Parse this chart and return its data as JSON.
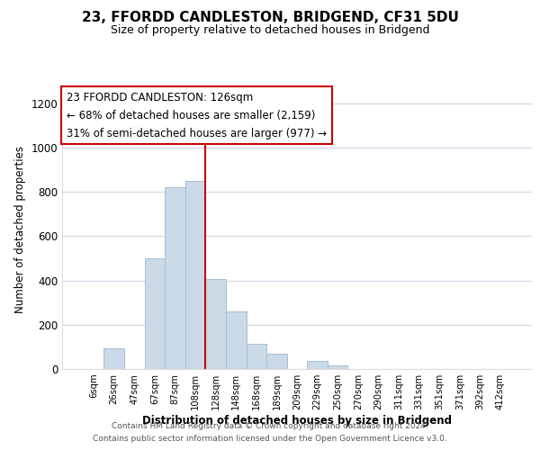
{
  "title": "23, FFORDD CANDLESTON, BRIDGEND, CF31 5DU",
  "subtitle": "Size of property relative to detached houses in Bridgend",
  "xlabel": "Distribution of detached houses by size in Bridgend",
  "ylabel": "Number of detached properties",
  "footer_line1": "Contains HM Land Registry data © Crown copyright and database right 2024.",
  "footer_line2": "Contains public sector information licensed under the Open Government Licence v3.0.",
  "bar_color": "#ccd9e8",
  "bar_edge_color": "#a8bfd0",
  "annotation_box_edge": "#cc0000",
  "vline_color": "#cc0000",
  "bin_labels": [
    "6sqm",
    "26sqm",
    "47sqm",
    "67sqm",
    "87sqm",
    "108sqm",
    "128sqm",
    "148sqm",
    "168sqm",
    "189sqm",
    "209sqm",
    "229sqm",
    "250sqm",
    "270sqm",
    "290sqm",
    "311sqm",
    "331sqm",
    "351sqm",
    "371sqm",
    "392sqm",
    "412sqm"
  ],
  "bar_heights": [
    0,
    95,
    0,
    500,
    820,
    850,
    405,
    260,
    115,
    70,
    0,
    35,
    15,
    0,
    0,
    0,
    0,
    0,
    0,
    0,
    0
  ],
  "vline_x_idx": 6,
  "ylim": [
    0,
    1260
  ],
  "yticks": [
    0,
    200,
    400,
    600,
    800,
    1000,
    1200
  ],
  "annotation_text_line1": "23 FFORDD CANDLESTON: 126sqm",
  "annotation_text_line2": "← 68% of detached houses are smaller (2,159)",
  "annotation_text_line3": "31% of semi-detached houses are larger (977) →"
}
